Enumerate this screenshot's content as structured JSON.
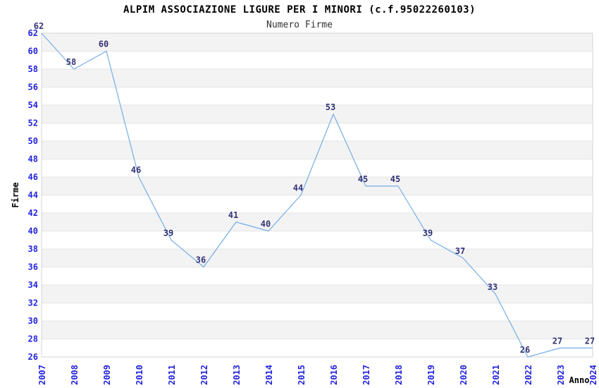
{
  "title": "ALPIM ASSOCIAZIONE LIGURE PER I MINORI (c.f.95022260103)",
  "subtitle": "Numero Firme",
  "chart_data": {
    "type": "line",
    "x": [
      "2007",
      "2008",
      "2009",
      "2010",
      "2011",
      "2012",
      "2013",
      "2014",
      "2015",
      "2016",
      "2017",
      "2018",
      "2019",
      "2020",
      "2021",
      "2022",
      "2023",
      "2024"
    ],
    "values": [
      62,
      58,
      60,
      46,
      39,
      36,
      41,
      40,
      44,
      53,
      45,
      45,
      39,
      37,
      33,
      26,
      27,
      27
    ],
    "title": "ALPIM ASSOCIAZIONE LIGURE PER I MINORI (c.f.95022260103)",
    "subtitle": "Numero Firme",
    "xlabel": "Anno",
    "ylabel": "Firme",
    "ylim": [
      26,
      62
    ],
    "ytick_step": 2,
    "grid": true,
    "banded_background": true,
    "data_labels": true,
    "legend": "none"
  },
  "colors": {
    "line": "#74ade6",
    "tick_label": "#2323dd",
    "data_label": "#333377",
    "band": "#f3f3f3",
    "grid": "#e4e4e4",
    "border": "#d4d4d4",
    "axis_label": "#000000",
    "background": "#ffffff"
  }
}
